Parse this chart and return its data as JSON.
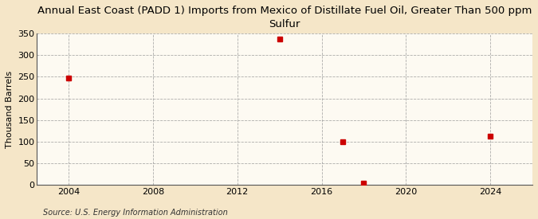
{
  "title": "Annual East Coast (PADD 1) Imports from Mexico of Distillate Fuel Oil, Greater Than 500 ppm\nSulfur",
  "ylabel": "Thousand Barrels",
  "source": "Source: U.S. Energy Information Administration",
  "years": [
    2004,
    2014,
    2017,
    2018,
    2024
  ],
  "values": [
    247,
    338,
    100,
    3,
    113
  ],
  "marker_color": "#CC0000",
  "marker_size": 4,
  "background_color": "#F5E6C8",
  "plot_bg_color": "#FDFAF2",
  "grid_color": "#999999",
  "xlim": [
    2002.5,
    2026
  ],
  "ylim": [
    0,
    350
  ],
  "yticks": [
    0,
    50,
    100,
    150,
    200,
    250,
    300,
    350
  ],
  "xticks": [
    2004,
    2008,
    2012,
    2016,
    2020,
    2024
  ],
  "title_fontsize": 9.5,
  "label_fontsize": 8,
  "tick_fontsize": 8,
  "source_fontsize": 7
}
